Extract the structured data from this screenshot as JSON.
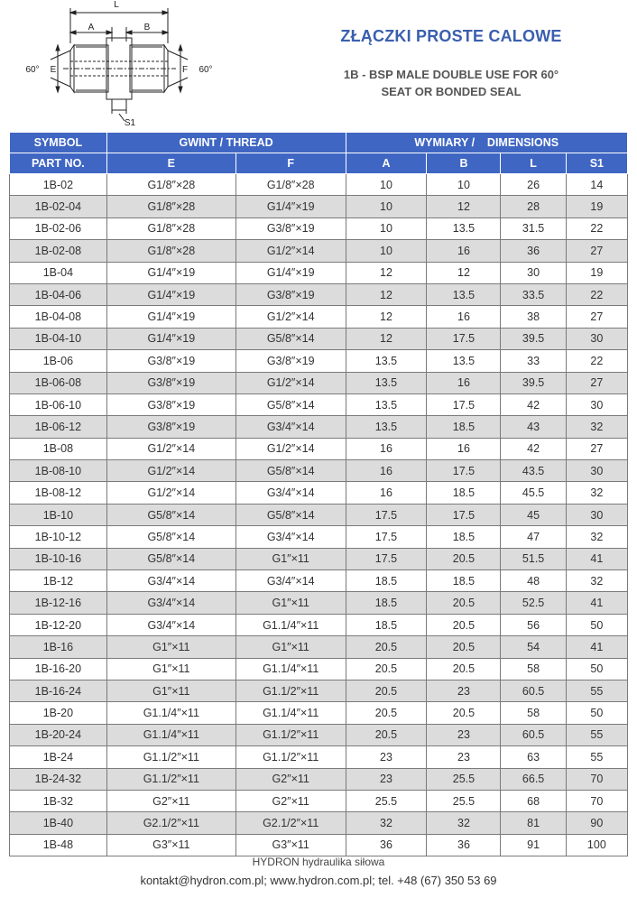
{
  "diagram": {
    "labels": {
      "L": "L",
      "A": "A",
      "B": "B",
      "E": "E",
      "F": "F",
      "S1": "S1",
      "angle_left": "60°",
      "angle_right": "60°"
    }
  },
  "header": {
    "title": "ZŁĄCZKI PROSTE CALOWE",
    "subtitle_line1": "1B - BSP MALE DOUBLE USE FOR 60°",
    "subtitle_line2": "SEAT OR BONDED SEAL"
  },
  "table": {
    "head": {
      "symbol": "SYMBOL",
      "part_no": "PART NO.",
      "thread": "GWINT / THREAD",
      "dimensions": "WYMIARY /    DIMENSIONS",
      "e": "E",
      "f": "F",
      "a": "A",
      "b": "B",
      "l": "L",
      "s1": "S1"
    },
    "rows": [
      [
        "1B-02",
        "G1/8″×28",
        "G1/8″×28",
        "10",
        "10",
        "26",
        "14"
      ],
      [
        "1B-02-04",
        "G1/8″×28",
        "G1/4″×19",
        "10",
        "12",
        "28",
        "19"
      ],
      [
        "1B-02-06",
        "G1/8″×28",
        "G3/8″×19",
        "10",
        "13.5",
        "31.5",
        "22"
      ],
      [
        "1B-02-08",
        "G1/8″×28",
        "G1/2″×14",
        "10",
        "16",
        "36",
        "27"
      ],
      [
        "1B-04",
        "G1/4″×19",
        "G1/4″×19",
        "12",
        "12",
        "30",
        "19"
      ],
      [
        "1B-04-06",
        "G1/4″×19",
        "G3/8″×19",
        "12",
        "13.5",
        "33.5",
        "22"
      ],
      [
        "1B-04-08",
        "G1/4″×19",
        "G1/2″×14",
        "12",
        "16",
        "38",
        "27"
      ],
      [
        "1B-04-10",
        "G1/4″×19",
        "G5/8″×14",
        "12",
        "17.5",
        "39.5",
        "30"
      ],
      [
        "1B-06",
        "G3/8″×19",
        "G3/8″×19",
        "13.5",
        "13.5",
        "33",
        "22"
      ],
      [
        "1B-06-08",
        "G3/8″×19",
        "G1/2″×14",
        "13.5",
        "16",
        "39.5",
        "27"
      ],
      [
        "1B-06-10",
        "G3/8″×19",
        "G5/8″×14",
        "13.5",
        "17.5",
        "42",
        "30"
      ],
      [
        "1B-06-12",
        "G3/8″×19",
        "G3/4″×14",
        "13.5",
        "18.5",
        "43",
        "32"
      ],
      [
        "1B-08",
        "G1/2″×14",
        "G1/2″×14",
        "16",
        "16",
        "42",
        "27"
      ],
      [
        "1B-08-10",
        "G1/2″×14",
        "G5/8″×14",
        "16",
        "17.5",
        "43.5",
        "30"
      ],
      [
        "1B-08-12",
        "G1/2″×14",
        "G3/4″×14",
        "16",
        "18.5",
        "45.5",
        "32"
      ],
      [
        "1B-10",
        "G5/8″×14",
        "G5/8″×14",
        "17.5",
        "17.5",
        "45",
        "30"
      ],
      [
        "1B-10-12",
        "G5/8″×14",
        "G3/4″×14",
        "17.5",
        "18.5",
        "47",
        "32"
      ],
      [
        "1B-10-16",
        "G5/8″×14",
        "G1″×11",
        "17.5",
        "20.5",
        "51.5",
        "41"
      ],
      [
        "1B-12",
        "G3/4″×14",
        "G3/4″×14",
        "18.5",
        "18.5",
        "48",
        "32"
      ],
      [
        "1B-12-16",
        "G3/4″×14",
        "G1″×11",
        "18.5",
        "20.5",
        "52.5",
        "41"
      ],
      [
        "1B-12-20",
        "G3/4″×14",
        "G1.1/4″×11",
        "18.5",
        "20.5",
        "56",
        "50"
      ],
      [
        "1B-16",
        "G1″×11",
        "G1″×11",
        "20.5",
        "20.5",
        "54",
        "41"
      ],
      [
        "1B-16-20",
        "G1″×11",
        "G1.1/4″×11",
        "20.5",
        "20.5",
        "58",
        "50"
      ],
      [
        "1B-16-24",
        "G1″×11",
        "G1.1/2″×11",
        "20.5",
        "23",
        "60.5",
        "55"
      ],
      [
        "1B-20",
        "G1.1/4″×11",
        "G1.1/4″×11",
        "20.5",
        "20.5",
        "58",
        "50"
      ],
      [
        "1B-20-24",
        "G1.1/4″×11",
        "G1.1/2″×11",
        "20.5",
        "23",
        "60.5",
        "55"
      ],
      [
        "1B-24",
        "G1.1/2″×11",
        "G1.1/2″×11",
        "23",
        "23",
        "63",
        "55"
      ],
      [
        "1B-24-32",
        "G1.1/2″×11",
        "G2″×11",
        "23",
        "25.5",
        "66.5",
        "70"
      ],
      [
        "1B-32",
        "G2″×11",
        "G2″×11",
        "25.5",
        "25.5",
        "68",
        "70"
      ],
      [
        "1B-40",
        "G2.1/2″×11",
        "G2.1/2″×11",
        "32",
        "32",
        "81",
        "90"
      ],
      [
        "1B-48",
        "G3″×11",
        "G3″×11",
        "36",
        "36",
        "91",
        "100"
      ]
    ]
  },
  "footer": {
    "company": "HYDRON hydraulika siłowa",
    "contact": "kontakt@hydron.com.pl; www.hydron.com.pl; tel. +48 (67) 350 53 69"
  }
}
